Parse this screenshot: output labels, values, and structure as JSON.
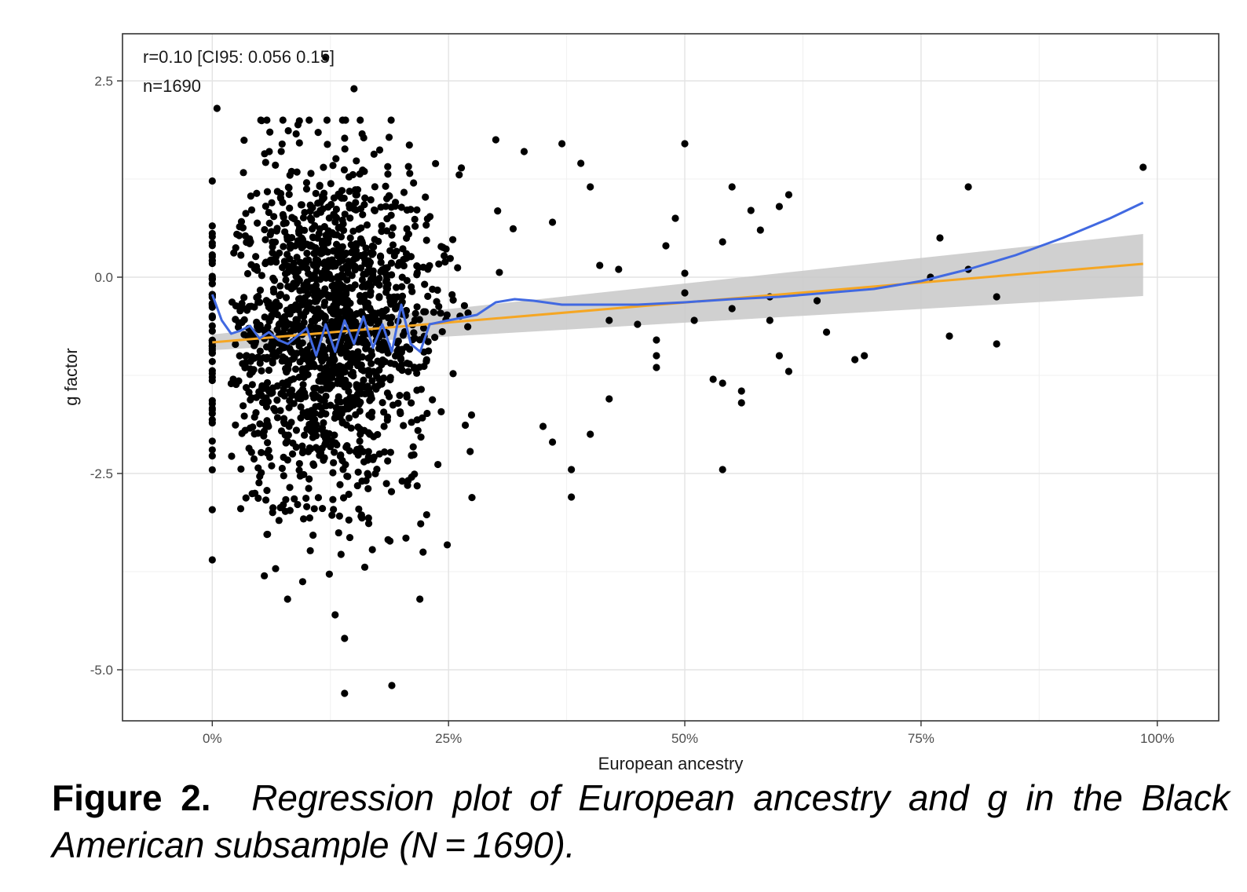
{
  "chart_data": {
    "type": "scatter",
    "xlabel": "European ancestry",
    "ylabel": "g factor",
    "xlim": [
      -0.095,
      1.065
    ],
    "ylim": [
      -5.65,
      3.1
    ],
    "x_ticks": [
      {
        "value": 0,
        "label": "0%"
      },
      {
        "value": 0.25,
        "label": "25%"
      },
      {
        "value": 0.5,
        "label": "50%"
      },
      {
        "value": 0.75,
        "label": "75%"
      },
      {
        "value": 1.0,
        "label": "100%"
      }
    ],
    "y_ticks": [
      {
        "value": 2.5,
        "label": "2.5"
      },
      {
        "value": 0.0,
        "label": "0.0"
      },
      {
        "value": -2.5,
        "label": "-2.5"
      },
      {
        "value": -5.0,
        "label": "-5.0"
      }
    ],
    "grid": true,
    "annotations": [
      "r=0.10 [CI95: 0.056 0.15]",
      "n=1690"
    ],
    "series": [
      {
        "name": "linear fit",
        "kind": "line",
        "color": "#f5a623",
        "x": [
          0.0,
          0.985
        ],
        "y": [
          -0.83,
          0.17
        ],
        "ci_lower": [
          -0.93,
          -0.24
        ],
        "ci_upper": [
          -0.73,
          0.55
        ],
        "ci_color": "#c8c8c8"
      },
      {
        "name": "loess fit",
        "kind": "line",
        "color": "#4169e1",
        "x": [
          0.0,
          0.01,
          0.02,
          0.03,
          0.04,
          0.05,
          0.06,
          0.07,
          0.08,
          0.09,
          0.1,
          0.11,
          0.12,
          0.13,
          0.14,
          0.15,
          0.16,
          0.17,
          0.18,
          0.19,
          0.2,
          0.21,
          0.22,
          0.23,
          0.25,
          0.28,
          0.3,
          0.32,
          0.34,
          0.37,
          0.4,
          0.45,
          0.5,
          0.55,
          0.6,
          0.65,
          0.7,
          0.75,
          0.8,
          0.85,
          0.9,
          0.95,
          0.985
        ],
        "y": [
          -0.22,
          -0.55,
          -0.72,
          -0.68,
          -0.62,
          -0.78,
          -0.7,
          -0.8,
          -0.85,
          -0.75,
          -0.65,
          -1.0,
          -0.6,
          -0.95,
          -0.55,
          -0.85,
          -0.5,
          -0.9,
          -0.6,
          -0.95,
          -0.35,
          -0.85,
          -0.95,
          -0.6,
          -0.55,
          -0.48,
          -0.32,
          -0.28,
          -0.3,
          -0.35,
          -0.35,
          -0.35,
          -0.32,
          -0.28,
          -0.25,
          -0.2,
          -0.15,
          -0.05,
          0.1,
          0.28,
          0.5,
          0.75,
          0.95
        ]
      }
    ],
    "scatter_summary": {
      "n": 1690,
      "core_x_range": [
        0.03,
        0.25
      ],
      "core_y_mean": -0.7,
      "core_y_sd": 1.15
    },
    "points_sparse": [
      [
        0.0,
        -3.6
      ],
      [
        0.005,
        2.15
      ],
      [
        0.12,
        2.8
      ],
      [
        0.15,
        2.4
      ],
      [
        0.14,
        -5.3
      ],
      [
        0.19,
        -5.2
      ],
      [
        0.14,
        -4.6
      ],
      [
        0.13,
        -4.3
      ],
      [
        0.38,
        -2.8
      ],
      [
        0.38,
        -2.45
      ],
      [
        0.4,
        -2.0
      ],
      [
        0.35,
        -1.9
      ],
      [
        0.36,
        -2.1
      ],
      [
        0.37,
        1.7
      ],
      [
        0.39,
        1.45
      ],
      [
        0.3,
        1.75
      ],
      [
        0.33,
        1.6
      ],
      [
        0.4,
        1.15
      ],
      [
        0.36,
        0.7
      ],
      [
        0.41,
        0.15
      ],
      [
        0.43,
        0.1
      ],
      [
        0.42,
        -0.55
      ],
      [
        0.45,
        -0.6
      ],
      [
        0.42,
        -1.55
      ],
      [
        0.47,
        -0.8
      ],
      [
        0.47,
        -1.0
      ],
      [
        0.47,
        -1.15
      ],
      [
        0.48,
        0.4
      ],
      [
        0.49,
        0.75
      ],
      [
        0.5,
        1.7
      ],
      [
        0.5,
        0.05
      ],
      [
        0.5,
        -0.2
      ],
      [
        0.51,
        -0.55
      ],
      [
        0.53,
        -1.3
      ],
      [
        0.54,
        -1.35
      ],
      [
        0.54,
        -2.45
      ],
      [
        0.55,
        -0.4
      ],
      [
        0.56,
        -1.45
      ],
      [
        0.56,
        -1.6
      ],
      [
        0.54,
        0.45
      ],
      [
        0.55,
        1.15
      ],
      [
        0.57,
        0.85
      ],
      [
        0.58,
        0.6
      ],
      [
        0.59,
        -0.55
      ],
      [
        0.59,
        -0.25
      ],
      [
        0.6,
        0.9
      ],
      [
        0.61,
        1.05
      ],
      [
        0.6,
        -1.0
      ],
      [
        0.61,
        -1.2
      ],
      [
        0.64,
        -0.3
      ],
      [
        0.65,
        -0.7
      ],
      [
        0.68,
        -1.05
      ],
      [
        0.69,
        -1.0
      ],
      [
        0.76,
        0.0
      ],
      [
        0.77,
        0.5
      ],
      [
        0.78,
        -0.75
      ],
      [
        0.8,
        1.15
      ],
      [
        0.8,
        0.1
      ],
      [
        0.83,
        -0.25
      ],
      [
        0.83,
        -0.85
      ],
      [
        0.985,
        1.4
      ]
    ]
  },
  "caption": {
    "label": "Figure 2.",
    "text": "Regression plot of European ancestry and g in the Black American subsample (N = 1690)."
  }
}
